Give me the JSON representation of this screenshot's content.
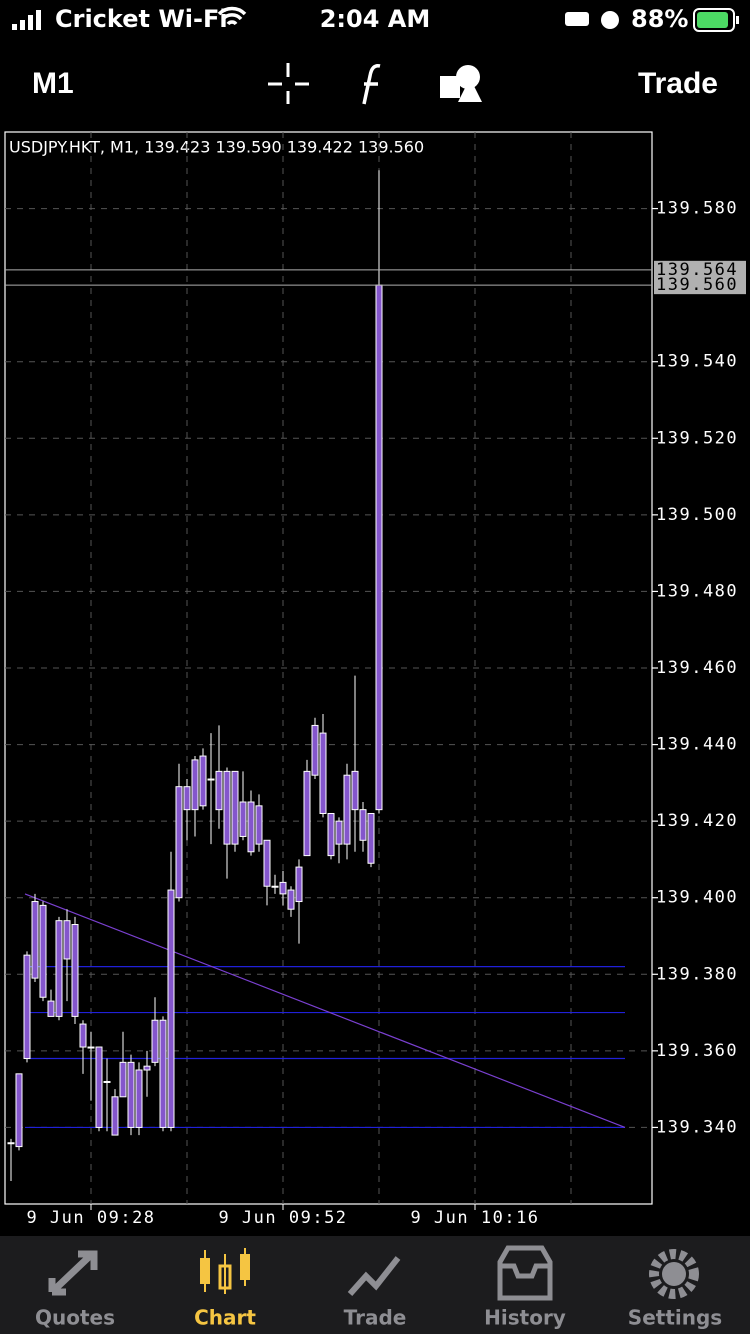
{
  "status_bar": {
    "carrier": "Cricket Wi-Fi",
    "time": "2:04 AM",
    "battery": "88%"
  },
  "toolbar": {
    "timeframe": "M1",
    "action": "Trade"
  },
  "chart_data": {
    "type": "candlestick",
    "title": "USDJPY.HKT, M1, 139.423 139.590 139.422 139.560",
    "categories": [
      null,
      null,
      null,
      null,
      null,
      null,
      null,
      null,
      null,
      null,
      "9 Jun 09:28",
      null,
      null,
      null,
      null,
      null,
      null,
      null,
      null,
      null,
      null,
      null,
      null,
      null,
      null,
      null,
      null,
      null,
      null,
      null,
      null,
      null,
      null,
      null,
      "9 Jun 09:52",
      null,
      null,
      null,
      null,
      null,
      null,
      null,
      null,
      null,
      null,
      null,
      null,
      null,
      null,
      null,
      null,
      null,
      null,
      null,
      null,
      null,
      null,
      null,
      "9 Jun 10:16",
      null,
      null,
      null,
      null,
      null,
      null,
      null,
      null,
      null,
      null,
      null,
      null,
      null,
      null,
      null,
      null,
      null,
      null,
      null,
      null,
      null,
      null
    ],
    "open": [
      139.336,
      139.335,
      139.358,
      139.379,
      139.398,
      139.373,
      139.369,
      139.394,
      139.393,
      139.367,
      139.361,
      139.361,
      139.352,
      139.348,
      139.348,
      139.357,
      139.34,
      139.355,
      139.357,
      139.368,
      139.34,
      139.4,
      139.429,
      139.423,
      139.437,
      139.431,
      139.423,
      139.433,
      139.414,
      139.425,
      139.425,
      139.414,
      139.415,
      139.403,
      139.404,
      139.402,
      139.399,
      139.411,
      139.432,
      139.443,
      139.422,
      139.414,
      139.414,
      139.433,
      139.423,
      139.422,
      139.423,
      null,
      null,
      null,
      null,
      null,
      null,
      null,
      null,
      null,
      null,
      null,
      null,
      null,
      null,
      null,
      null,
      null,
      null,
      null,
      null,
      null,
      null,
      null,
      null,
      null,
      null,
      null,
      null,
      null,
      null,
      null,
      null,
      null,
      null
    ],
    "high": [
      139.337,
      139.354,
      139.386,
      139.401,
      139.399,
      139.376,
      139.395,
      139.397,
      139.395,
      139.368,
      139.365,
      139.361,
      139.358,
      139.35,
      139.365,
      139.359,
      139.357,
      139.36,
      139.374,
      139.369,
      139.412,
      139.435,
      139.431,
      139.437,
      139.439,
      139.443,
      139.445,
      139.434,
      139.433,
      139.433,
      139.428,
      139.427,
      139.415,
      139.406,
      139.407,
      139.403,
      139.41,
      139.436,
      139.447,
      139.448,
      139.422,
      139.421,
      139.435,
      139.458,
      139.425,
      139.422,
      139.59,
      null,
      null,
      null,
      null,
      null,
      null,
      null,
      null,
      null,
      null,
      null,
      null,
      null,
      null,
      null,
      null,
      null,
      null,
      null,
      null,
      null,
      null,
      null,
      null,
      null,
      null,
      null,
      null,
      null,
      null,
      null,
      null,
      null,
      null
    ],
    "low": [
      139.326,
      139.334,
      139.357,
      139.378,
      139.373,
      139.369,
      139.368,
      139.373,
      139.367,
      139.354,
      139.347,
      139.339,
      139.339,
      139.338,
      139.348,
      139.338,
      139.338,
      139.348,
      139.356,
      139.339,
      139.339,
      139.399,
      139.415,
      139.416,
      139.423,
      139.414,
      139.418,
      139.405,
      139.412,
      139.415,
      139.411,
      139.412,
      139.398,
      139.401,
      139.398,
      139.395,
      139.388,
      139.411,
      139.431,
      139.421,
      139.41,
      139.409,
      139.41,
      139.412,
      139.412,
      139.408,
      139.422,
      null,
      null,
      null,
      null,
      null,
      null,
      null,
      null,
      null,
      null,
      null,
      null,
      null,
      null,
      null,
      null,
      null,
      null,
      null,
      null,
      null,
      null,
      null,
      null,
      null,
      null,
      null,
      null,
      null,
      null,
      null,
      null,
      null,
      null
    ],
    "close": [
      139.336,
      139.354,
      139.385,
      139.399,
      139.374,
      139.369,
      139.394,
      139.384,
      139.369,
      139.361,
      139.361,
      139.34,
      139.352,
      139.338,
      139.357,
      139.34,
      139.355,
      139.356,
      139.368,
      139.34,
      139.402,
      139.429,
      139.423,
      139.436,
      139.424,
      139.431,
      139.433,
      139.414,
      139.433,
      139.416,
      139.412,
      139.424,
      139.403,
      139.403,
      139.401,
      139.397,
      139.408,
      139.433,
      139.445,
      139.422,
      139.411,
      139.42,
      139.432,
      139.423,
      139.415,
      139.409,
      139.56,
      null,
      null,
      null,
      null,
      null,
      null,
      null,
      null,
      null,
      null,
      null,
      null,
      null,
      null,
      null,
      null,
      null,
      null,
      null,
      null,
      null,
      null,
      null,
      null,
      null,
      null,
      null,
      null,
      null,
      null,
      null,
      null,
      null,
      null
    ],
    "candle_color": "#8456cc",
    "wick_color": "#ffffff",
    "levels": [
      139.382,
      139.37,
      139.358,
      139.34
    ],
    "level_color": "#2020d8",
    "trend_line": [
      139.401,
      139.34
    ],
    "trend_color": "#7a40d0",
    "price_lines": [
      139.564,
      {
        "value": 139.56,
        "label": "139.560"
      }
    ],
    "price_line_color": "#b0b0b0",
    "ylim": [
      139.32,
      139.6
    ],
    "yticks": [
      {
        "value": 139.34,
        "label": "139.340"
      },
      {
        "value": 139.36,
        "label": "139.360"
      },
      {
        "value": 139.38,
        "label": "139.380"
      },
      {
        "value": 139.4,
        "label": "139.400"
      },
      {
        "value": 139.42,
        "label": "139.420"
      },
      {
        "value": 139.44,
        "label": "139.440"
      },
      {
        "value": 139.46,
        "label": "139.460"
      },
      {
        "value": 139.48,
        "label": "139.480"
      },
      {
        "value": 139.5,
        "label": "139.500"
      },
      {
        "value": 139.52,
        "label": "139.520"
      },
      {
        "value": 139.54,
        "label": "139.540"
      },
      {
        "value": 139.58,
        "label": "139.580"
      }
    ],
    "grid": true
  },
  "tab_bar": {
    "tabs": [
      "Quotes",
      "Chart",
      "Trade",
      "History",
      "Settings"
    ],
    "active": 1
  }
}
